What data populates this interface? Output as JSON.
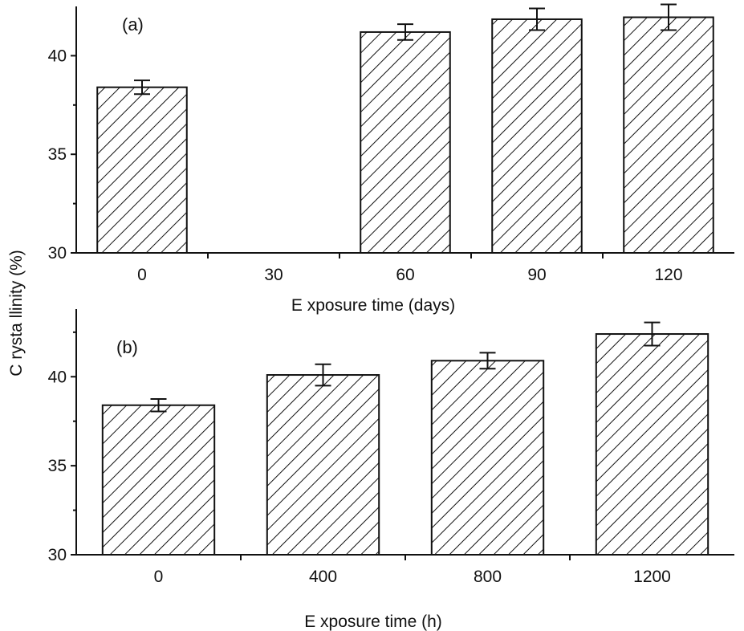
{
  "ylabel": "C rysta llinity (%)",
  "chart_data": [
    {
      "type": "bar",
      "panel_label": "(a)",
      "xlabel": "E xposure time (days)",
      "categories": [
        "0",
        "30",
        "60",
        "90",
        "120"
      ],
      "values": [
        38.4,
        null,
        41.2,
        41.85,
        41.95
      ],
      "errors": [
        0.35,
        null,
        0.4,
        0.55,
        0.65
      ],
      "ylim": [
        30,
        42.5
      ],
      "yticks": [
        "30",
        "35",
        "40"
      ],
      "pattern": "diagonal-hatch"
    },
    {
      "type": "bar",
      "panel_label": "(b)",
      "xlabel": "E xposure time (h)",
      "categories": [
        "0",
        "400",
        "800",
        "1200"
      ],
      "values": [
        38.4,
        40.1,
        40.9,
        42.4
      ],
      "errors": [
        0.35,
        0.6,
        0.45,
        0.65
      ],
      "ylim": [
        30,
        43.8
      ],
      "yticks": [
        "30",
        "35",
        "40"
      ],
      "pattern": "diagonal-hatch"
    }
  ]
}
